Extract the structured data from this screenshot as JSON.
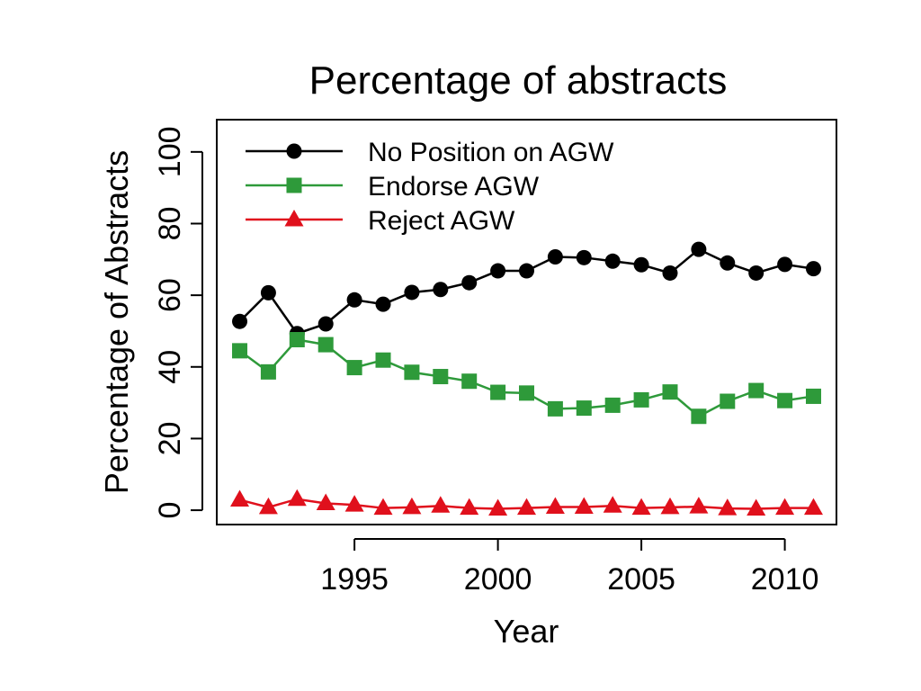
{
  "chart_data": {
    "type": "line",
    "title": "Percentage of abstracts",
    "xlabel": "Year",
    "ylabel": "Percentage of Abstracts",
    "xlim": [
      1990.2,
      2011.8
    ],
    "ylim": [
      -4,
      109
    ],
    "x_ticks": [
      1995,
      2000,
      2005,
      2010
    ],
    "y_ticks": [
      0,
      20,
      40,
      60,
      80,
      100
    ],
    "grid": false,
    "legend_position": "top-left",
    "x": [
      1991,
      1992,
      1993,
      1994,
      1995,
      1996,
      1997,
      1998,
      1999,
      2000,
      2001,
      2002,
      2003,
      2004,
      2005,
      2006,
      2007,
      2008,
      2009,
      2010,
      2011
    ],
    "series": [
      {
        "name": "No Position on AGW",
        "color": "#000000",
        "marker": "circle",
        "values": [
          52.7,
          60.7,
          49.3,
          52.0,
          58.7,
          57.5,
          60.8,
          61.6,
          63.5,
          66.8,
          66.8,
          70.7,
          70.5,
          69.5,
          68.5,
          66.2,
          72.8,
          69.0,
          66.2,
          68.6,
          67.4
        ]
      },
      {
        "name": "Endorse AGW",
        "color": "#2e9a3a",
        "marker": "square",
        "values": [
          44.5,
          38.6,
          47.6,
          46.2,
          39.8,
          41.9,
          38.5,
          37.3,
          36.0,
          32.9,
          32.7,
          28.3,
          28.5,
          29.3,
          30.8,
          33.0,
          26.2,
          30.4,
          33.4,
          30.6,
          31.8
        ]
      },
      {
        "name": "Reject AGW",
        "color": "#e0101c",
        "marker": "triangle",
        "values": [
          2.9,
          0.8,
          3.1,
          1.9,
          1.5,
          0.6,
          0.8,
          1.2,
          0.6,
          0.4,
          0.6,
          0.9,
          0.9,
          1.2,
          0.6,
          0.8,
          1.0,
          0.5,
          0.4,
          0.6,
          0.6
        ]
      }
    ]
  }
}
